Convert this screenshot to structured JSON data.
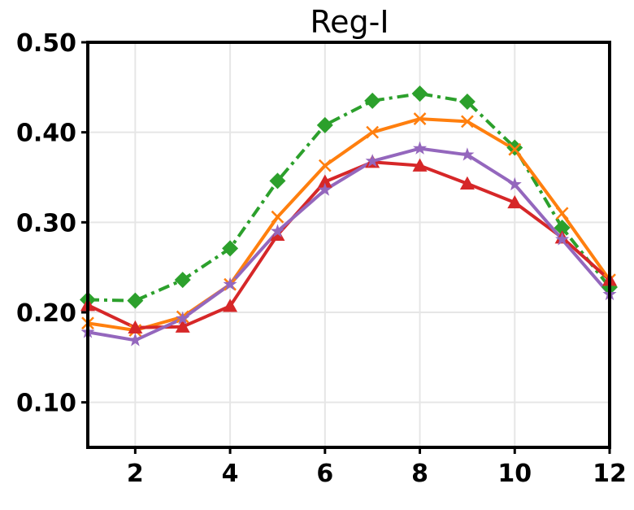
{
  "chart_data": {
    "type": "line",
    "title": "Reg-I",
    "xlabel": "",
    "ylabel": "",
    "xlim": [
      1,
      12
    ],
    "ylim": [
      0.05,
      0.5
    ],
    "grid": true,
    "x": [
      1,
      2,
      3,
      4,
      5,
      6,
      7,
      8,
      9,
      10,
      11,
      12
    ],
    "xticks": [
      2,
      4,
      6,
      8,
      10,
      12
    ],
    "xtick_labels": [
      "2",
      "4",
      "6",
      "8",
      "10",
      "12"
    ],
    "yticks": [
      0.1,
      0.2,
      0.3,
      0.4,
      0.5
    ],
    "ytick_labels": [
      "0.10",
      "0.20",
      "0.30",
      "0.40",
      "0.50"
    ],
    "series": [
      {
        "name": "green",
        "color": "#2ca02c",
        "marker": "diamond",
        "linestyle": "dashdot",
        "values": [
          0.214,
          0.213,
          0.236,
          0.271,
          0.346,
          0.408,
          0.435,
          0.443,
          0.434,
          0.383,
          0.294,
          0.228
        ]
      },
      {
        "name": "orange",
        "color": "#ff7f0e",
        "marker": "x",
        "linestyle": "solid",
        "values": [
          0.188,
          0.18,
          0.195,
          0.231,
          0.306,
          0.363,
          0.4,
          0.415,
          0.412,
          0.381,
          0.31,
          0.236
        ]
      },
      {
        "name": "red",
        "color": "#d62728",
        "marker": "triangle",
        "linestyle": "solid",
        "values": [
          0.208,
          0.183,
          0.184,
          0.207,
          0.286,
          0.345,
          0.367,
          0.363,
          0.343,
          0.322,
          0.283,
          0.236
        ]
      },
      {
        "name": "purple",
        "color": "#9467bd",
        "marker": "star",
        "linestyle": "solid",
        "values": [
          0.178,
          0.169,
          0.193,
          0.231,
          0.29,
          0.336,
          0.368,
          0.382,
          0.375,
          0.342,
          0.281,
          0.22
        ]
      }
    ]
  }
}
